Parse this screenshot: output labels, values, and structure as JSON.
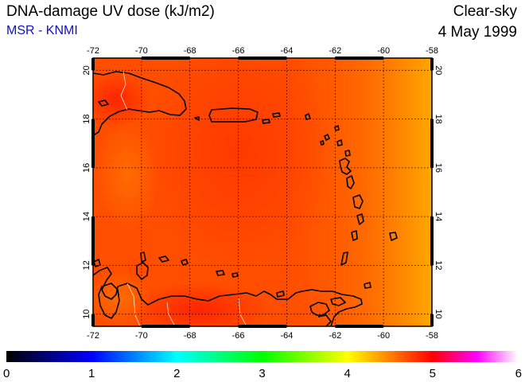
{
  "header": {
    "title": "DNA-damage UV dose (kJ/m2)",
    "credit": "MSR - KNMI",
    "sky_condition": "Clear-sky",
    "date": "4 May 1999"
  },
  "map": {
    "lon_range": [
      -72,
      -58
    ],
    "lat_range": [
      9.5,
      20.5
    ],
    "lon_ticks": [
      -72,
      -70,
      -68,
      -66,
      -64,
      -62,
      -60,
      -58
    ],
    "lat_ticks": [
      10,
      12,
      14,
      16,
      18,
      20
    ],
    "grid": true,
    "field_description_colors": {
      "base": "#ff4a00",
      "warm_center": "#ff3800",
      "hot_spot": "#ff2200",
      "east_edge": "#ffa600"
    }
  },
  "colorbar": {
    "min": 0,
    "max": 6,
    "tick_labels": [
      "0",
      "1",
      "2",
      "3",
      "4",
      "5",
      "6"
    ],
    "stops": [
      "#000000",
      "#0000ff",
      "#00ffff",
      "#00ff00",
      "#ffff00",
      "#ff0000",
      "#ff00ff",
      "#ffffff"
    ]
  }
}
